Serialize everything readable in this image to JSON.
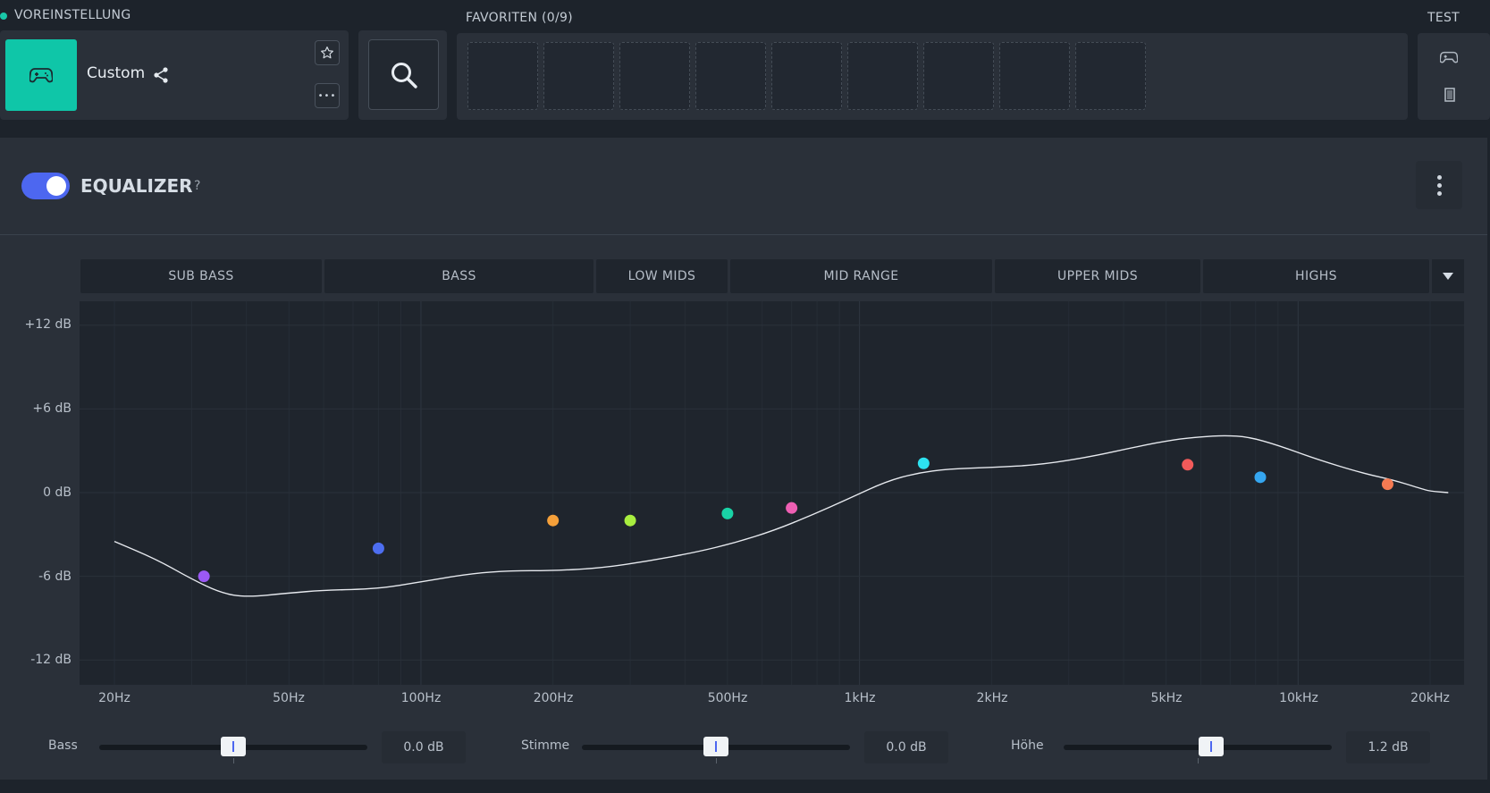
{
  "preset": {
    "section_label": "VOREINSTELLUNG",
    "name": "Custom",
    "icon": "gamepad-icon",
    "favorite_icon": "star-icon",
    "more_icon": "more-horizontal-icon",
    "more_label": "•••",
    "share_icon": "share-icon"
  },
  "search": {
    "icon": "search-icon"
  },
  "favorites": {
    "section_label": "FAVORITEN (0/9)",
    "slots": 9
  },
  "test": {
    "section_label": "TEST",
    "icons": [
      "gamepad-icon",
      "memory-chip-icon"
    ]
  },
  "equalizer": {
    "title": "EQUALIZER",
    "help": "?",
    "enabled": true,
    "bands": [
      "SUB BASS",
      "BASS",
      "LOW MIDS",
      "MID RANGE",
      "UPPER MIDS",
      "HIGHS"
    ],
    "db_labels": [
      "+12 dB",
      "+6 dB",
      "0 dB",
      "-6 dB",
      "-12 dB"
    ],
    "hz_labels": [
      "20Hz",
      "50Hz",
      "100Hz",
      "200Hz",
      "500Hz",
      "1kHz",
      "2kHz",
      "5kHz",
      "10kHz",
      "20kHz"
    ],
    "colors": {
      "accent": "#4d67f0",
      "preset_tile": "#0fc6a8",
      "curve": "#e6e9ee"
    },
    "points": [
      {
        "freq_hz": 32,
        "gain_db": -6.0,
        "color": "#9b59f5"
      },
      {
        "freq_hz": 80,
        "gain_db": -4.0,
        "color": "#4d6ef0"
      },
      {
        "freq_hz": 200,
        "gain_db": -2.0,
        "color": "#f5a03a"
      },
      {
        "freq_hz": 300,
        "gain_db": -2.0,
        "color": "#a8ee3f"
      },
      {
        "freq_hz": 500,
        "gain_db": -1.5,
        "color": "#19d3a6"
      },
      {
        "freq_hz": 700,
        "gain_db": -1.1,
        "color": "#ee5fb3"
      },
      {
        "freq_hz": 1400,
        "gain_db": 2.1,
        "color": "#2de2f0"
      },
      {
        "freq_hz": 5600,
        "gain_db": 2.0,
        "color": "#f25a5a"
      },
      {
        "freq_hz": 8200,
        "gain_db": 1.1,
        "color": "#35a6f0"
      },
      {
        "freq_hz": 16000,
        "gain_db": 0.6,
        "color": "#f57a52"
      }
    ],
    "curve": [
      [
        20,
        -3.5
      ],
      [
        25,
        -4.8
      ],
      [
        30,
        -6.2
      ],
      [
        35,
        -7.2
      ],
      [
        40,
        -7.5
      ],
      [
        50,
        -7.2
      ],
      [
        60,
        -7.0
      ],
      [
        80,
        -6.9
      ],
      [
        100,
        -6.4
      ],
      [
        130,
        -5.8
      ],
      [
        160,
        -5.6
      ],
      [
        200,
        -5.6
      ],
      [
        260,
        -5.4
      ],
      [
        330,
        -4.9
      ],
      [
        420,
        -4.3
      ],
      [
        520,
        -3.6
      ],
      [
        640,
        -2.7
      ],
      [
        780,
        -1.6
      ],
      [
        950,
        -0.4
      ],
      [
        1150,
        0.8
      ],
      [
        1350,
        1.4
      ],
      [
        1600,
        1.7
      ],
      [
        2000,
        1.8
      ],
      [
        2600,
        2.0
      ],
      [
        3400,
        2.6
      ],
      [
        4300,
        3.3
      ],
      [
        5200,
        3.8
      ],
      [
        6000,
        4.0
      ],
      [
        6800,
        4.1
      ],
      [
        7700,
        4.0
      ],
      [
        9000,
        3.4
      ],
      [
        11000,
        2.4
      ],
      [
        14000,
        1.4
      ],
      [
        16500,
        0.9
      ],
      [
        19000,
        0.3
      ],
      [
        20000,
        0.1
      ],
      [
        22000,
        0.0
      ]
    ]
  },
  "sliders": [
    {
      "label": "Bass",
      "value": "0.0 dB",
      "position": 0.5
    },
    {
      "label": "Stimme",
      "value": "0.0 dB",
      "position": 0.5
    },
    {
      "label": "Höhe",
      "value": "1.2 dB",
      "position": 0.55
    }
  ]
}
